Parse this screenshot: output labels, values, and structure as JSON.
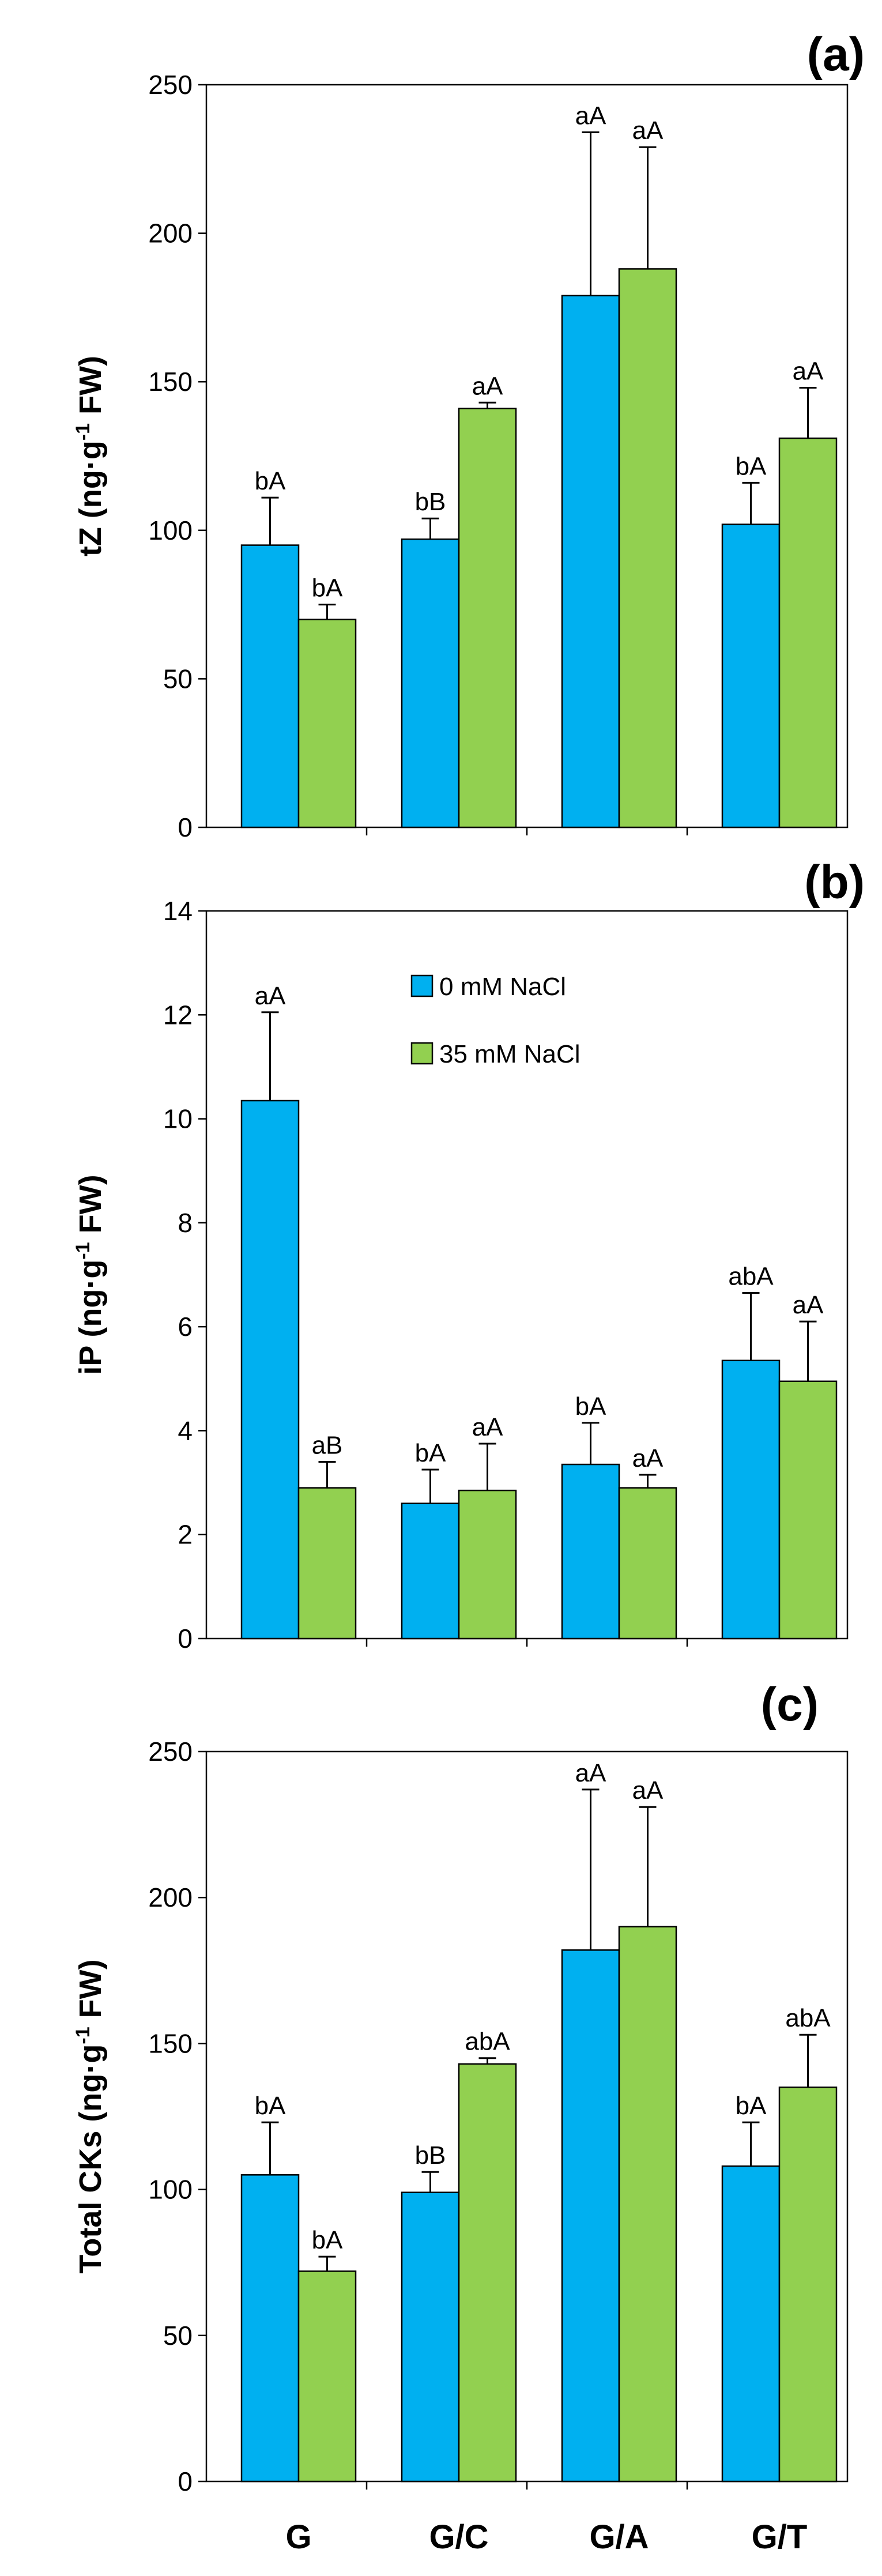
{
  "colors": {
    "control": "#00B0F0",
    "salt": "#92D050",
    "stroke": "#000000"
  },
  "legend": {
    "control": "0 mM NaCl",
    "salt": "35 mM NaCl"
  },
  "x_categories": [
    "G",
    "G/C",
    "G/A",
    "G/T"
  ],
  "chart_data": [
    {
      "type": "bar",
      "panel": "(a)",
      "ylabel": {
        "main": "tZ (ng·g",
        "sup": "-1",
        "tail": " FW)"
      },
      "categories": [
        "G",
        "G/C",
        "G/A",
        "G/T"
      ],
      "ylim": [
        0,
        250
      ],
      "yticks": [
        0,
        50,
        100,
        150,
        200,
        250
      ],
      "series": [
        {
          "name": "0 mM NaCl",
          "values": [
            95,
            97,
            179,
            102
          ],
          "errors": [
            16,
            7,
            55,
            14
          ],
          "labels": [
            "bA",
            "bB",
            "aA",
            "bA"
          ]
        },
        {
          "name": "35 mM NaCl",
          "values": [
            70,
            141,
            188,
            131
          ],
          "errors": [
            5,
            2,
            41,
            17
          ],
          "labels": [
            "bA",
            "aA",
            "aA",
            "aA"
          ]
        }
      ]
    },
    {
      "type": "bar",
      "panel": "(b)",
      "ylabel": {
        "main": "iP (ng·g",
        "sup": "-1",
        "tail": " FW)"
      },
      "categories": [
        "G",
        "G/C",
        "G/A",
        "G/T"
      ],
      "ylim": [
        0,
        14
      ],
      "yticks": [
        0,
        2,
        4,
        6,
        8,
        10,
        12,
        14
      ],
      "series": [
        {
          "name": "0 mM NaCl",
          "values": [
            10.35,
            2.6,
            3.35,
            5.35
          ],
          "errors": [
            1.7,
            0.65,
            0.8,
            1.3
          ],
          "labels": [
            "aA",
            "bA",
            "bA",
            "abA"
          ]
        },
        {
          "name": "35 mM NaCl",
          "values": [
            2.9,
            2.85,
            2.9,
            4.95
          ],
          "errors": [
            0.5,
            0.9,
            0.25,
            1.15
          ],
          "labels": [
            "aB",
            "aA",
            "aA",
            "aA"
          ]
        }
      ]
    },
    {
      "type": "bar",
      "panel": "(c)",
      "ylabel": {
        "main": "Total CKs (ng·g",
        "sup": "-1",
        "tail": " FW)"
      },
      "categories": [
        "G",
        "G/C",
        "G/A",
        "G/T"
      ],
      "ylim": [
        0,
        250
      ],
      "yticks": [
        0,
        50,
        100,
        150,
        200,
        250
      ],
      "series": [
        {
          "name": "0 mM NaCl",
          "values": [
            105,
            99,
            182,
            108
          ],
          "errors": [
            18,
            7,
            55,
            15
          ],
          "labels": [
            "bA",
            "bB",
            "aA",
            "bA"
          ]
        },
        {
          "name": "35 mM NaCl",
          "values": [
            72,
            143,
            190,
            135
          ],
          "errors": [
            5,
            2,
            41,
            18
          ],
          "labels": [
            "bA",
            "abA",
            "aA",
            "abA"
          ]
        }
      ]
    }
  ]
}
